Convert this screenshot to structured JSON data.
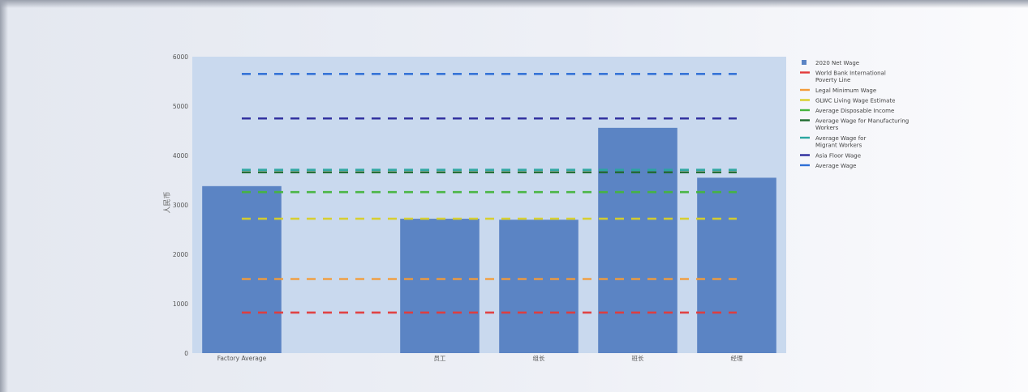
{
  "chart_data": {
    "type": "bar",
    "title": "",
    "xlabel": "",
    "ylabel": "人民币",
    "ylim": [
      0,
      6000
    ],
    "yticks": [
      0,
      1000,
      2000,
      3000,
      4000,
      5000,
      6000
    ],
    "grid": false,
    "legend_position": "right",
    "categories": [
      "Factory Average",
      "",
      "员工",
      "组长",
      "班长",
      "经理"
    ],
    "series": [
      {
        "name": "2020 Net Wage",
        "kind": "bar",
        "color": "#5b84c4",
        "values": [
          3380,
          null,
          2720,
          2700,
          4560,
          3550
        ]
      }
    ],
    "reference_lines": [
      {
        "name": "World Bank International Poverty Line",
        "value": 820,
        "color": "#e23b3b"
      },
      {
        "name": "Legal Minimum Wage",
        "value": 1500,
        "color": "#f39c3a"
      },
      {
        "name": "GLWC Living Wage Estimate",
        "value": 2720,
        "color": "#d8cf2a"
      },
      {
        "name": "Average Disposable Income",
        "value": 3260,
        "color": "#45b53e"
      },
      {
        "name": "Average Wage for Manufacturing Workers",
        "value": 3660,
        "color": "#1e6b2e"
      },
      {
        "name": "Average Wage for Migrant Workers",
        "value": 3710,
        "color": "#2aa6a0"
      },
      {
        "name": "Asia Floor Wage",
        "value": 4750,
        "color": "#2a2a9c"
      },
      {
        "name": "Average Wage",
        "value": 5650,
        "color": "#2f6fd6"
      }
    ]
  },
  "legend": [
    {
      "label": "2020 Net Wage",
      "marker": "square",
      "color": "#5b84c4"
    },
    {
      "label": "World Bank International\nPoverty Line",
      "marker": "line",
      "color": "#e23b3b"
    },
    {
      "label": "Legal Minimum Wage",
      "marker": "line",
      "color": "#f39c3a"
    },
    {
      "label": "GLWC Living Wage Estimate",
      "marker": "line",
      "color": "#d8cf2a"
    },
    {
      "label": "Average Disposable Income",
      "marker": "line",
      "color": "#45b53e"
    },
    {
      "label": "Average Wage for Manufacturing\nWorkers",
      "marker": "line",
      "color": "#1e6b2e"
    },
    {
      "label": "Average Wage for\nMigrant Workers",
      "marker": "line",
      "color": "#2aa6a0"
    },
    {
      "label": "Asia Floor Wage",
      "marker": "line",
      "color": "#2a2a9c"
    },
    {
      "label": "Average Wage",
      "marker": "line",
      "color": "#2f6fd6"
    }
  ],
  "colors": {
    "plot_background": "#c9d9ee",
    "axis_text": "#555555"
  }
}
